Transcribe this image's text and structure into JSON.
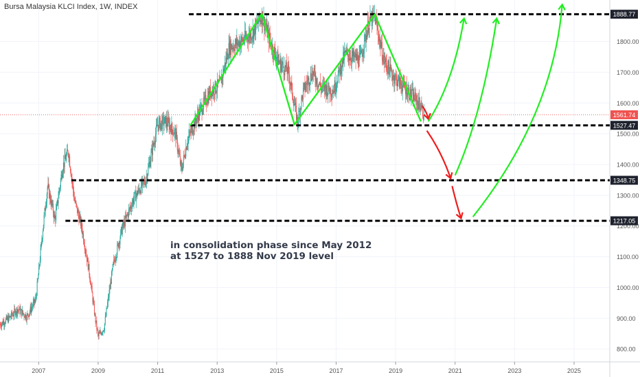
{
  "header": {
    "title": "Bursa Malaysia KLCI Index, 1W, INDEX"
  },
  "annotation": {
    "line1": "in consolidation phase since May 2012",
    "line2": "at 1527 to 1888 Nov 2019 level"
  },
  "colors": {
    "up": "#26a69a",
    "down": "#ef5350",
    "support": "#000000",
    "pattern": "#22ee22",
    "bearish": "#ee1c1c",
    "price_tag": "#ef5350",
    "grid": "#f0f3fa"
  },
  "chart_data": {
    "type": "candlestick",
    "x_range": [
      2005.7,
      2026.2
    ],
    "y_range": [
      758,
      1935
    ],
    "x_ticks": [
      2007,
      2009,
      2011,
      2013,
      2015,
      2017,
      2019,
      2021,
      2023,
      2025
    ],
    "y_ticks": [
      800,
      900,
      1000,
      1100,
      1200,
      1300,
      1400,
      1500,
      1600,
      1700,
      1800
    ],
    "current_price": 1561.74,
    "support_resistance": [
      {
        "value": 1888.77,
        "from": 2012.05
      },
      {
        "value": 1527.47,
        "from": 2012.1
      },
      {
        "value": 1348.75,
        "from": 2008.1
      },
      {
        "value": 1217.05,
        "from": 2007.9
      }
    ],
    "price_path": [
      [
        2005.7,
        880
      ],
      [
        2006.0,
        900
      ],
      [
        2006.3,
        930
      ],
      [
        2006.6,
        905
      ],
      [
        2006.9,
        960
      ],
      [
        2007.0,
        1050
      ],
      [
        2007.15,
        1200
      ],
      [
        2007.3,
        1330
      ],
      [
        2007.55,
        1220
      ],
      [
        2007.8,
        1390
      ],
      [
        2008.0,
        1445
      ],
      [
        2008.2,
        1285
      ],
      [
        2008.45,
        1195
      ],
      [
        2008.7,
        1050
      ],
      [
        2008.9,
        900
      ],
      [
        2009.0,
        840
      ],
      [
        2009.2,
        870
      ],
      [
        2009.5,
        1070
      ],
      [
        2009.8,
        1190
      ],
      [
        2010.2,
        1290
      ],
      [
        2010.6,
        1350
      ],
      [
        2011.0,
        1530
      ],
      [
        2011.3,
        1540
      ],
      [
        2011.6,
        1500
      ],
      [
        2011.8,
        1380
      ],
      [
        2012.0,
        1480
      ],
      [
        2012.4,
        1570
      ],
      [
        2012.8,
        1640
      ],
      [
        2013.1,
        1660
      ],
      [
        2013.4,
        1780
      ],
      [
        2013.8,
        1800
      ],
      [
        2014.2,
        1830
      ],
      [
        2014.5,
        1885
      ],
      [
        2014.85,
        1780
      ],
      [
        2015.1,
        1730
      ],
      [
        2015.4,
        1700
      ],
      [
        2015.7,
        1540
      ],
      [
        2015.9,
        1640
      ],
      [
        2016.2,
        1700
      ],
      [
        2016.5,
        1650
      ],
      [
        2016.9,
        1640
      ],
      [
        2017.3,
        1760
      ],
      [
        2017.8,
        1740
      ],
      [
        2018.1,
        1860
      ],
      [
        2018.3,
        1880
      ],
      [
        2018.6,
        1740
      ],
      [
        2018.9,
        1690
      ],
      [
        2019.2,
        1660
      ],
      [
        2019.6,
        1620
      ],
      [
        2019.85,
        1590
      ],
      [
        2019.95,
        1561.74
      ]
    ]
  }
}
